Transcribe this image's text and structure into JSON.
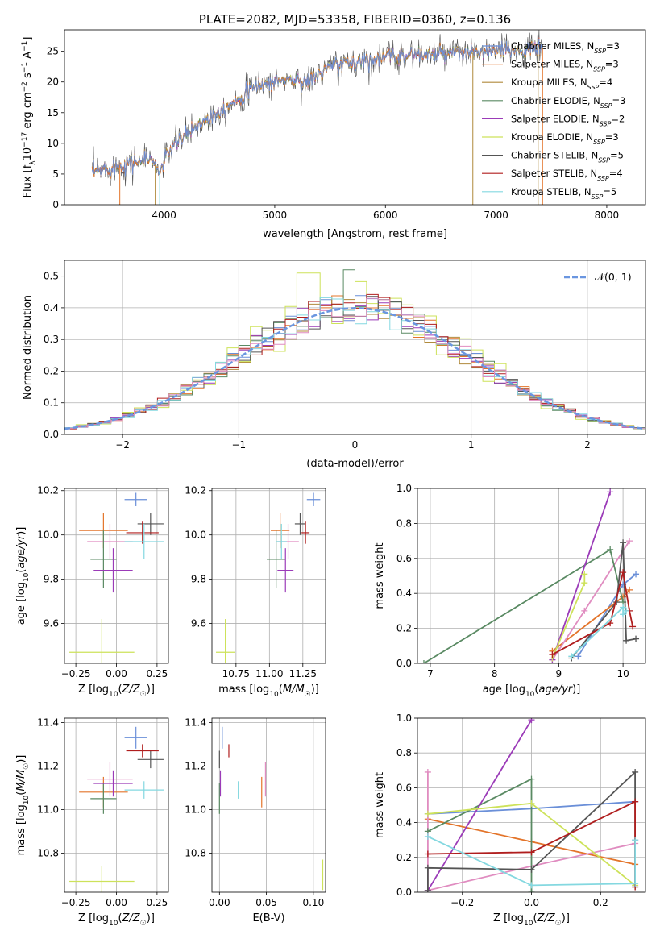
{
  "colors": {
    "chabrier_miles": "#6a8fd8",
    "salpeter_miles": "#e3742a",
    "kroupa_miles": "#b08a3c",
    "chabrier_elodie": "#5a8a63",
    "salpeter_elodie": "#9b3bb8",
    "kroupa_elodie": "#cde25a",
    "chabrier_stelib": "#555555",
    "salpeter_stelib": "#b01e1e",
    "kroupa_stelib": "#84d8e0",
    "pink": "#e08cc0",
    "normal": "#6a96e0",
    "grid": "#b0b0b0"
  },
  "chart_data": [
    {
      "type": "line",
      "title": "PLATE=2082, MJD=53358, FIBERID=0360, z=0.136",
      "xlabel": "wavelength [Angstrom, rest frame]",
      "ylabel_parts": [
        "Flux [f",
        "λ",
        "10",
        "−17",
        " erg cm",
        "−2",
        " s",
        "−1",
        " A",
        "−1",
        "]"
      ],
      "xlim": [
        3100,
        8350
      ],
      "ylim": [
        0,
        28.5
      ],
      "xticks": [
        4000,
        5000,
        6000,
        7000,
        8000
      ],
      "yticks": [
        0,
        5,
        10,
        15,
        20,
        25
      ],
      "grid": false,
      "legend_position": "right",
      "spectrum_profile": [
        [
          3350,
          5.2
        ],
        [
          3600,
          6.5
        ],
        [
          3900,
          7.5
        ],
        [
          3950,
          5.0
        ],
        [
          4050,
          9.0
        ],
        [
          4300,
          13.0
        ],
        [
          4600,
          16.5
        ],
        [
          4850,
          19.5
        ],
        [
          5100,
          20.5
        ],
        [
          5300,
          20.0
        ],
        [
          5500,
          22.5
        ],
        [
          5800,
          23.5
        ],
        [
          6200,
          24.5
        ],
        [
          6600,
          24.5
        ],
        [
          7000,
          25.0
        ],
        [
          7400,
          25.5
        ]
      ],
      "series": [
        {
          "name": "Chabrier MILES, N",
          "sub": "SSP",
          "suffix": "=3",
          "color_key": "chabrier_miles"
        },
        {
          "name": "Salpeter MILES, N",
          "sub": "SSP",
          "suffix": "=3",
          "color_key": "salpeter_miles"
        },
        {
          "name": "Kroupa MILES, N",
          "sub": "SSP",
          "suffix": "=4",
          "color_key": "kroupa_miles"
        },
        {
          "name": "Chabrier ELODIE, N",
          "sub": "SSP",
          "suffix": "=3",
          "color_key": "chabrier_elodie"
        },
        {
          "name": "Salpeter ELODIE, N",
          "sub": "SSP",
          "suffix": "=2",
          "color_key": "salpeter_elodie"
        },
        {
          "name": "Kroupa ELODIE, N",
          "sub": "SSP",
          "suffix": "=3",
          "color_key": "kroupa_elodie"
        },
        {
          "name": "Chabrier STELIB, N",
          "sub": "SSP",
          "suffix": "=5",
          "color_key": "chabrier_stelib"
        },
        {
          "name": "Salpeter STELIB, N",
          "sub": "SSP",
          "suffix": "=4",
          "color_key": "salpeter_stelib"
        },
        {
          "name": "Kroupa STELIB, N",
          "sub": "SSP",
          "suffix": "=5",
          "color_key": "kroupa_stelib"
        }
      ]
    },
    {
      "type": "histogram",
      "xlabel": "(data-model)/error",
      "ylabel": "Normed distribution",
      "xlim": [
        -2.5,
        2.5
      ],
      "ylim": [
        0,
        0.55
      ],
      "xticks": [
        -2,
        -1,
        0,
        1,
        2
      ],
      "yticks": [
        0.0,
        0.1,
        0.2,
        0.3,
        0.4,
        0.5
      ],
      "grid": true,
      "legend": "𝒩(0, 1)",
      "legend_position": "top-right",
      "bin_width": 0.1,
      "model": "normal(0, 1)"
    },
    {
      "type": "scatter",
      "xlabel": "Z [log10(Z/Z☉)]",
      "ylabel": "age [log10(age/yr)]",
      "xlim": [
        -0.32,
        0.32
      ],
      "ylim": [
        9.42,
        10.21
      ],
      "xticks": [
        -0.25,
        0.0,
        0.25
      ],
      "yticks": [
        9.6,
        9.8,
        10.0,
        10.2
      ],
      "grid": true,
      "points": [
        {
          "c": "chabrier_miles",
          "x": 0.12,
          "y": 10.16,
          "ex": 0.07,
          "ey": 0.03
        },
        {
          "c": "salpeter_miles",
          "x": -0.08,
          "y": 10.02,
          "ex": 0.15,
          "ey": 0.08
        },
        {
          "c": "pink",
          "x": -0.04,
          "y": 9.97,
          "ex": 0.14,
          "ey": 0.08
        },
        {
          "c": "chabrier_elodie",
          "x": -0.08,
          "y": 9.89,
          "ex": 0.08,
          "ey": 0.13
        },
        {
          "c": "salpeter_elodie",
          "x": -0.02,
          "y": 9.84,
          "ex": 0.12,
          "ey": 0.1
        },
        {
          "c": "kroupa_elodie",
          "x": -0.09,
          "y": 9.47,
          "ex": 0.2,
          "ey": 0.15
        },
        {
          "c": "chabrier_stelib",
          "x": 0.21,
          "y": 10.05,
          "ex": 0.08,
          "ey": 0.05
        },
        {
          "c": "salpeter_stelib",
          "x": 0.16,
          "y": 10.01,
          "ex": 0.1,
          "ey": 0.05
        },
        {
          "c": "kroupa_stelib",
          "x": 0.17,
          "y": 9.97,
          "ex": 0.12,
          "ey": 0.08
        }
      ]
    },
    {
      "type": "scatter",
      "xlabel": "mass [log10(M/M☉)]",
      "ylabel": "",
      "xlim": [
        10.57,
        11.42
      ],
      "ylim": [
        9.42,
        10.21
      ],
      "xticks": [
        10.75,
        11.0,
        11.25
      ],
      "yticks": [
        9.6,
        9.8,
        10.0,
        10.2
      ],
      "grid": true,
      "points": [
        {
          "c": "chabrier_miles",
          "x": 11.33,
          "y": 10.16,
          "ex": 0.05,
          "ey": 0.03
        },
        {
          "c": "salpeter_miles",
          "x": 11.08,
          "y": 10.02,
          "ex": 0.07,
          "ey": 0.08
        },
        {
          "c": "pink",
          "x": 11.14,
          "y": 9.97,
          "ex": 0.08,
          "ey": 0.08
        },
        {
          "c": "chabrier_elodie",
          "x": 11.05,
          "y": 9.89,
          "ex": 0.07,
          "ey": 0.13
        },
        {
          "c": "salpeter_elodie",
          "x": 11.12,
          "y": 9.84,
          "ex": 0.06,
          "ey": 0.1
        },
        {
          "c": "kroupa_elodie",
          "x": 10.67,
          "y": 9.47,
          "ex": 0.07,
          "ey": 0.15
        },
        {
          "c": "chabrier_stelib",
          "x": 11.23,
          "y": 10.05,
          "ex": 0.04,
          "ey": 0.05
        },
        {
          "c": "salpeter_stelib",
          "x": 11.27,
          "y": 10.01,
          "ex": 0.03,
          "ey": 0.05
        },
        {
          "c": "kroupa_stelib",
          "x": 11.09,
          "y": 9.97,
          "ex": 0.04,
          "ey": 0.08
        }
      ]
    },
    {
      "type": "line",
      "xlabel": "age [log10(age/yr)]",
      "ylabel": "mass weight",
      "xlim": [
        6.8,
        10.35
      ],
      "ylim": [
        0,
        1.0
      ],
      "xticks": [
        7,
        8,
        9,
        10
      ],
      "yticks": [
        0.0,
        0.2,
        0.4,
        0.6,
        0.8,
        1.0
      ],
      "grid": true,
      "series": [
        {
          "c": "chabrier_miles",
          "x": [
            9.3,
            10.0,
            10.2
          ],
          "y": [
            0.04,
            0.45,
            0.51
          ]
        },
        {
          "c": "salpeter_miles",
          "x": [
            8.9,
            10.0,
            10.1
          ],
          "y": [
            0.07,
            0.38,
            0.42
          ]
        },
        {
          "c": "pink",
          "x": [
            8.9,
            9.4,
            10.1
          ],
          "y": [
            0.02,
            0.3,
            0.7
          ]
        },
        {
          "c": "chabrier_elodie",
          "x": [
            6.9,
            9.8,
            10.0
          ],
          "y": [
            0.0,
            0.65,
            0.35
          ]
        },
        {
          "c": "salpeter_elodie",
          "x": [
            8.9,
            9.8
          ],
          "y": [
            0.02,
            0.98
          ]
        },
        {
          "c": "kroupa_elodie",
          "x": [
            8.9,
            9.4,
            9.4
          ],
          "y": [
            0.03,
            0.46,
            0.51
          ]
        },
        {
          "c": "chabrier_stelib",
          "x": [
            9.2,
            9.9,
            10.0,
            10.05,
            10.2
          ],
          "y": [
            0.03,
            0.35,
            0.69,
            0.13,
            0.14
          ]
        },
        {
          "c": "salpeter_stelib",
          "x": [
            8.9,
            9.8,
            10.0,
            10.1,
            10.15
          ],
          "y": [
            0.05,
            0.23,
            0.52,
            0.3,
            0.21
          ]
        },
        {
          "c": "kroupa_stelib",
          "x": [
            9.2,
            10.0,
            10.0,
            10.05
          ],
          "y": [
            0.04,
            0.32,
            0.28,
            0.3
          ]
        }
      ]
    },
    {
      "type": "scatter",
      "xlabel": "Z [log10(Z/Z☉)]",
      "ylabel": "mass [log10(M/M☉)]",
      "xlim": [
        -0.32,
        0.32
      ],
      "ylim": [
        10.62,
        11.42
      ],
      "xticks": [
        -0.25,
        0.0,
        0.25
      ],
      "yticks": [
        10.8,
        11.0,
        11.2,
        11.4
      ],
      "grid": true,
      "points": [
        {
          "c": "chabrier_miles",
          "x": 0.12,
          "y": 11.33,
          "ex": 0.07,
          "ey": 0.05
        },
        {
          "c": "salpeter_miles",
          "x": -0.08,
          "y": 11.08,
          "ex": 0.15,
          "ey": 0.07
        },
        {
          "c": "pink",
          "x": -0.04,
          "y": 11.14,
          "ex": 0.14,
          "ey": 0.08
        },
        {
          "c": "chabrier_elodie",
          "x": -0.08,
          "y": 11.05,
          "ex": 0.08,
          "ey": 0.07
        },
        {
          "c": "salpeter_elodie",
          "x": -0.02,
          "y": 11.12,
          "ex": 0.12,
          "ey": 0.06
        },
        {
          "c": "kroupa_elodie",
          "x": -0.09,
          "y": 10.67,
          "ex": 0.2,
          "ey": 0.07
        },
        {
          "c": "chabrier_stelib",
          "x": 0.21,
          "y": 11.23,
          "ex": 0.08,
          "ey": 0.04
        },
        {
          "c": "salpeter_stelib",
          "x": 0.16,
          "y": 11.27,
          "ex": 0.1,
          "ey": 0.03
        },
        {
          "c": "kroupa_stelib",
          "x": 0.17,
          "y": 11.09,
          "ex": 0.12,
          "ey": 0.04
        }
      ]
    },
    {
      "type": "scatter",
      "xlabel": "E(B-V)",
      "ylabel": "",
      "xlim": [
        -0.008,
        0.113
      ],
      "ylim": [
        10.62,
        11.42
      ],
      "xticks": [
        0.0,
        0.05,
        0.1
      ],
      "yticks": [
        10.8,
        11.0,
        11.2,
        11.4
      ],
      "grid": true,
      "points": [
        {
          "c": "chabrier_miles",
          "x": 0.003,
          "y": 11.33,
          "ex": 0,
          "ey": 0.05
        },
        {
          "c": "salpeter_miles",
          "x": 0.045,
          "y": 11.08,
          "ex": 0,
          "ey": 0.07
        },
        {
          "c": "pink",
          "x": 0.049,
          "y": 11.14,
          "ex": 0,
          "ey": 0.08
        },
        {
          "c": "chabrier_elodie",
          "x": 0.0,
          "y": 11.05,
          "ex": 0,
          "ey": 0.07
        },
        {
          "c": "salpeter_elodie",
          "x": 0.001,
          "y": 11.12,
          "ex": 0,
          "ey": 0.06
        },
        {
          "c": "kroupa_elodie",
          "x": 0.11,
          "y": 10.7,
          "ex": 0,
          "ey": 0.07
        },
        {
          "c": "chabrier_stelib",
          "x": 0.0,
          "y": 11.23,
          "ex": 0,
          "ey": 0.04
        },
        {
          "c": "salpeter_stelib",
          "x": 0.01,
          "y": 11.27,
          "ex": 0,
          "ey": 0.03
        },
        {
          "c": "kroupa_stelib",
          "x": 0.02,
          "y": 11.09,
          "ex": 0,
          "ey": 0.04
        }
      ]
    },
    {
      "type": "line",
      "xlabel": "Z [log10(Z/Z☉)]",
      "ylabel": "mass weight",
      "xlim": [
        -0.33,
        0.33
      ],
      "ylim": [
        0,
        1.0
      ],
      "xticks": [
        -0.2,
        0.0,
        0.2
      ],
      "yticks": [
        0.0,
        0.2,
        0.4,
        0.6,
        0.8,
        1.0
      ],
      "grid": true,
      "series": [
        {
          "c": "chabrier_miles",
          "x": [
            -0.3,
            0.0,
            0.3
          ],
          "y": [
            0.45,
            0.48,
            0.52
          ]
        },
        {
          "c": "salpeter_miles",
          "x": [
            -0.3,
            0.0,
            0.3
          ],
          "y": [
            0.42,
            0.29,
            0.16
          ]
        },
        {
          "c": "pink",
          "x": [
            -0.3,
            -0.3,
            0.0,
            0.3,
            0.3
          ],
          "y": [
            0.69,
            0.01,
            0.15,
            0.28,
            0.3
          ]
        },
        {
          "c": "chabrier_elodie",
          "x": [
            -0.3,
            0.0,
            0.0
          ],
          "y": [
            0.35,
            0.65,
            0.0
          ]
        },
        {
          "c": "salpeter_elodie",
          "x": [
            -0.3,
            0.0
          ],
          "y": [
            0.01,
            0.99
          ]
        },
        {
          "c": "kroupa_elodie",
          "x": [
            -0.3,
            0.0,
            0.3
          ],
          "y": [
            0.45,
            0.51,
            0.04
          ]
        },
        {
          "c": "chabrier_stelib",
          "x": [
            -0.3,
            -0.3,
            0.0,
            0.3,
            0.3
          ],
          "y": [
            0.01,
            0.14,
            0.13,
            0.69,
            0.03
          ]
        },
        {
          "c": "salpeter_stelib",
          "x": [
            -0.3,
            0.0,
            0.3,
            0.3
          ],
          "y": [
            0.22,
            0.23,
            0.52,
            0.03
          ]
        },
        {
          "c": "kroupa_stelib",
          "x": [
            -0.3,
            0.0,
            0.3,
            0.3
          ],
          "y": [
            0.32,
            0.04,
            0.05,
            0.3
          ]
        }
      ]
    }
  ]
}
